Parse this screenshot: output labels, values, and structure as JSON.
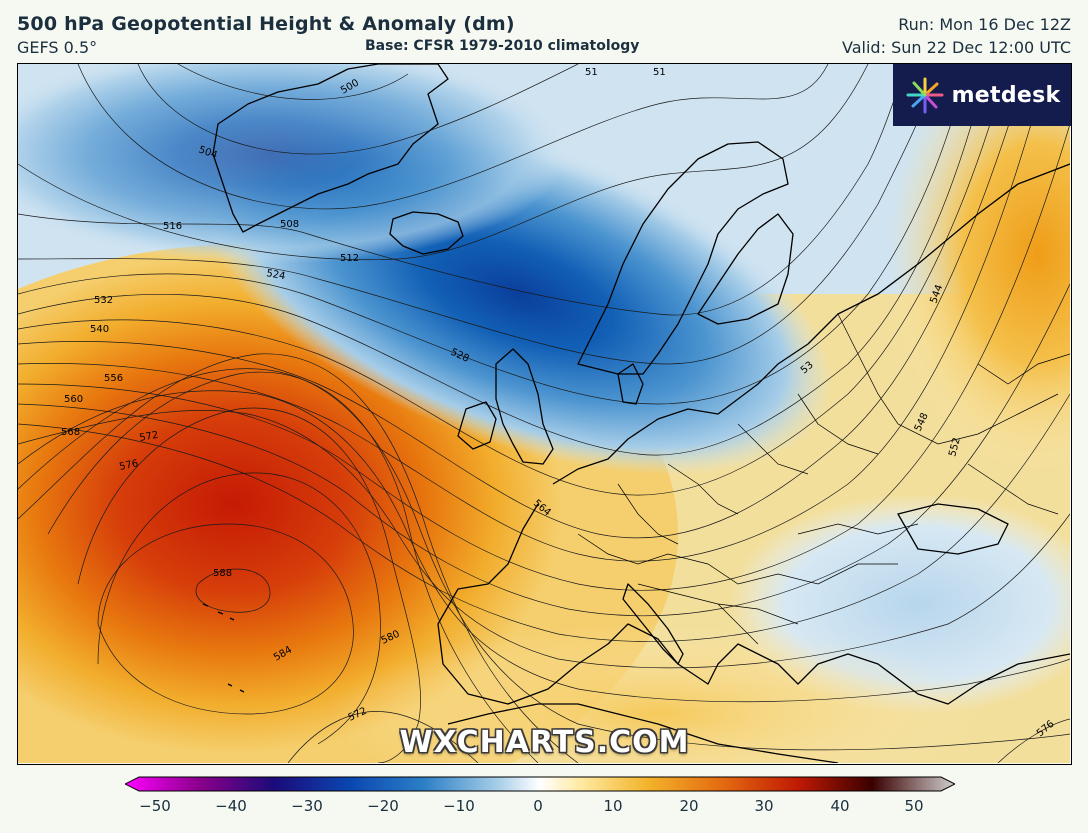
{
  "header": {
    "title": "500 hPa Geopotential Height & Anomaly (dm)",
    "model": "GEFS 0.5°",
    "base": "Base: CFSR 1979-2010 climatology",
    "run": "Run: Mon 16 Dec 12Z",
    "valid": "Valid: Sun 22 Dec 12:00 UTC"
  },
  "logo": {
    "text": "metdesk",
    "icon": "metdesk-burst-icon",
    "bg_color": "#141b4d"
  },
  "watermark": "WXCHARTS.COM",
  "contour_labels": [
    "500",
    "504",
    "508",
    "512",
    "516",
    "524",
    "528",
    "532",
    "540",
    "544",
    "548",
    "552",
    "556",
    "560",
    "564",
    "568",
    "572",
    "576",
    "580",
    "584",
    "588",
    "51",
    "53"
  ],
  "colorbar": {
    "ticks": [
      "−50",
      "−40",
      "−30",
      "−20",
      "−10",
      "0",
      "10",
      "20",
      "30",
      "40",
      "50"
    ],
    "colors": [
      "#ff00ff",
      "#8a008a",
      "#1b0a7a",
      "#0a46b0",
      "#2c7fc7",
      "#a8cfe8",
      "#ffffff",
      "#ffe9a0",
      "#f2b32a",
      "#e46a10",
      "#c01a04",
      "#3a0000",
      "#d0d0d0"
    ]
  }
}
